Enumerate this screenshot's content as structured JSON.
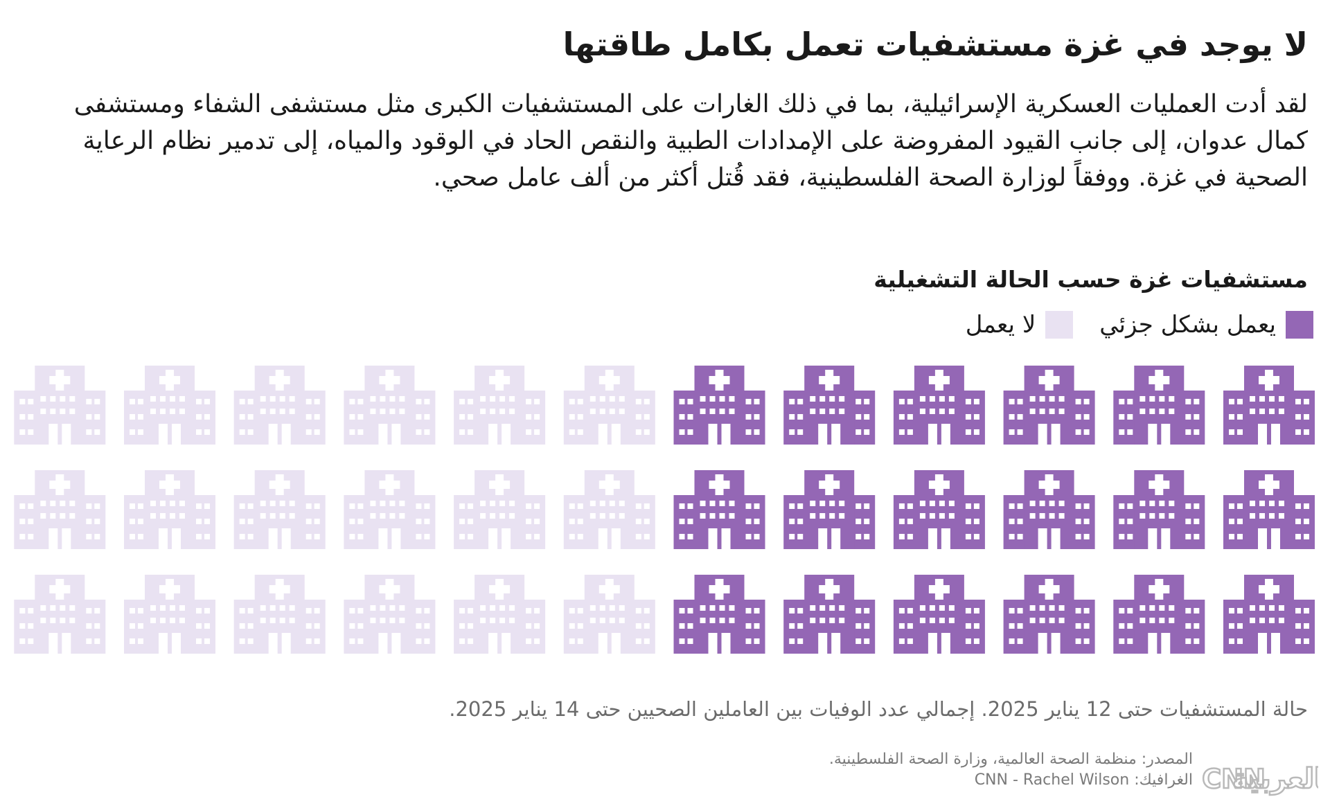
{
  "title": "لا يوجد في غزة مستشفيات تعمل بكامل طاقتها",
  "intro": "لقد أدت العمليات العسكرية الإسرائيلية، بما في ذلك الغارات على المستشفيات الكبرى مثل مستشفى الشفاء ومستشفى كمال عدوان، إلى جانب القيود المفروضة على الإمدادات الطبية والنقص الحاد في الوقود والمياه، إلى تدمير نظام الرعاية الصحية في غزة. ووفقاً لوزارة الصحة الفلسطينية، فقد قُتل أكثر من ألف عامل صحي.",
  "chart_data": {
    "type": "pictogram",
    "title": "مستشفيات غزة حسب الحالة التشغيلية",
    "series": [
      {
        "name": "يعمل بشكل جزئي",
        "value": 18,
        "color": "#9467b5"
      },
      {
        "name": "لا يعمل",
        "value": 18,
        "color": "#e9e2f2"
      }
    ],
    "rows": 3,
    "columns": 12,
    "icon": "hospital-building-icon"
  },
  "note": "حالة المستشفيات حتى 12 يناير 2025. إجمالي عدد الوفيات بين العاملين الصحيين حتى 14 يناير 2025.",
  "credits": {
    "source": "المصدر: منظمة الصحة العالمية، وزارة الصحة الفلسطينية.",
    "graphics": "الغرافيك: CNN - Rachel Wilson"
  },
  "logo": {
    "icon": "cnn-arabic-logo",
    "text_ar": "بالعربية",
    "text_en": "CNN"
  }
}
